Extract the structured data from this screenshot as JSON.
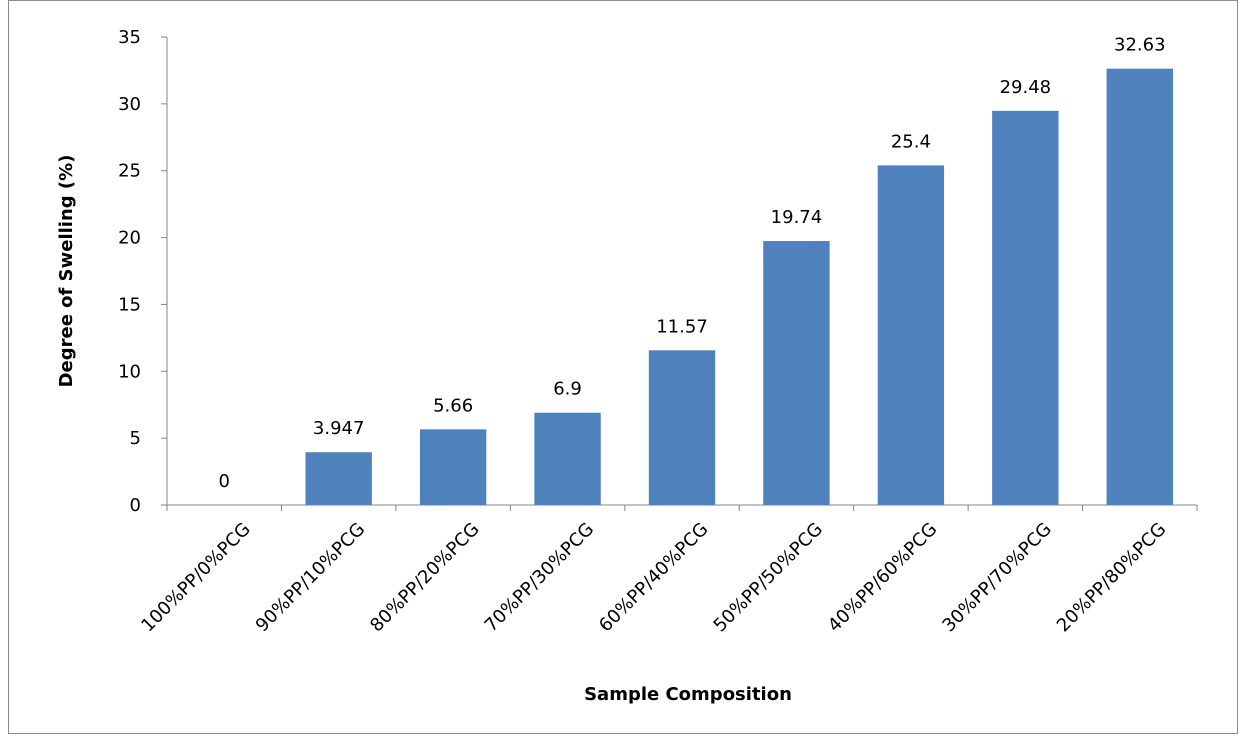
{
  "chart_data": {
    "type": "bar",
    "title": "",
    "xlabel": "Sample Composition",
    "ylabel": "Degree of Swelling (%)",
    "categories": [
      "100%PP/0%PCG",
      "90%PP/10%PCG",
      "80%PP/20%PCG",
      "70%PP/30%PCG",
      "60%PP/40%PCG",
      "50%PP/50%PCG",
      "40%PP/60%PCG",
      "30%PP/70%PCG",
      "20%PP/80%PCG"
    ],
    "values": [
      0,
      3.947,
      5.66,
      6.9,
      11.57,
      19.74,
      25.4,
      29.48,
      32.63
    ],
    "value_labels": [
      "0",
      "3.947",
      "5.66",
      "6.9",
      "11.57",
      "19.74",
      "25.4",
      "29.48",
      "32.63"
    ],
    "ylim": [
      0,
      35
    ],
    "yticks": [
      0,
      5,
      10,
      15,
      20,
      25,
      30,
      35
    ],
    "grid": false,
    "legend": "none",
    "bar_color": "#4f81bd"
  }
}
